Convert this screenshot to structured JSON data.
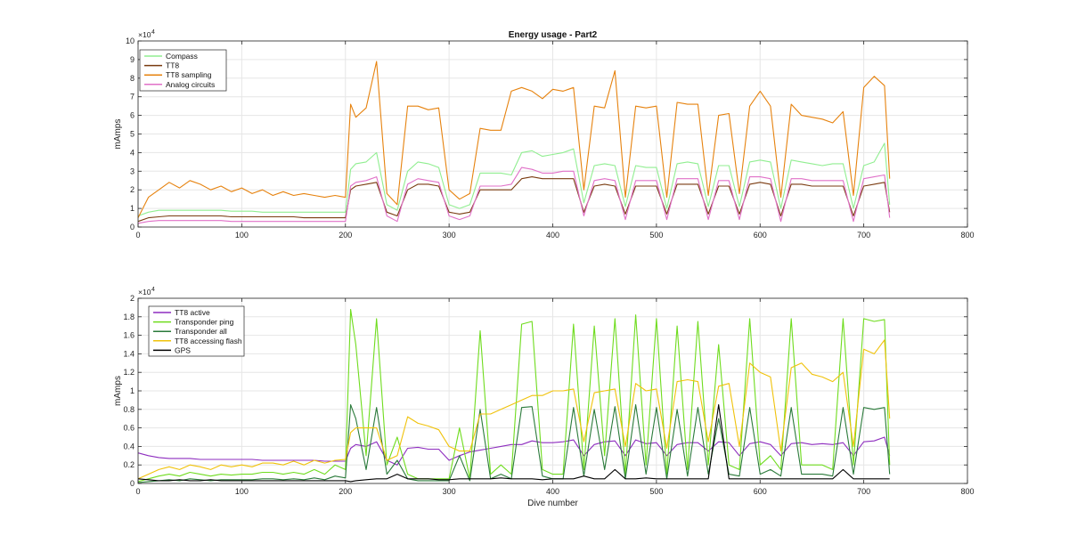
{
  "chart_data": [
    {
      "type": "line",
      "title": "Energy usage - Part2",
      "xlabel": "",
      "ylabel": "mAmps",
      "xlim": [
        0,
        800
      ],
      "ylim": [
        0,
        10
      ],
      "y_exponent_base": "×10",
      "y_exponent": "4",
      "x_ticks": [
        0,
        100,
        200,
        300,
        400,
        500,
        600,
        700,
        800
      ],
      "y_ticks": [
        0,
        1,
        2,
        3,
        4,
        5,
        6,
        7,
        8,
        9,
        10
      ],
      "grid": true,
      "legend_position": "top-left",
      "x": [
        0,
        10,
        20,
        30,
        40,
        50,
        60,
        70,
        80,
        90,
        100,
        110,
        120,
        130,
        140,
        150,
        160,
        170,
        180,
        190,
        200,
        205,
        210,
        220,
        230,
        240,
        250,
        260,
        270,
        280,
        290,
        300,
        310,
        320,
        330,
        340,
        350,
        360,
        370,
        380,
        390,
        400,
        410,
        420,
        430,
        440,
        450,
        460,
        470,
        480,
        490,
        500,
        510,
        520,
        530,
        540,
        550,
        560,
        570,
        580,
        590,
        600,
        610,
        620,
        630,
        640,
        650,
        660,
        670,
        680,
        690,
        700,
        710,
        720,
        725
      ],
      "series": [
        {
          "name": "Compass",
          "color": "#90ee90",
          "values": [
            0.6,
            0.8,
            0.9,
            0.9,
            0.9,
            0.9,
            0.9,
            0.9,
            0.9,
            0.85,
            0.85,
            0.85,
            0.8,
            0.8,
            0.8,
            0.8,
            0.8,
            0.8,
            0.8,
            0.8,
            0.8,
            3.1,
            3.4,
            3.5,
            4.0,
            1.2,
            0.9,
            3.0,
            3.5,
            3.4,
            3.2,
            1.2,
            1.0,
            1.2,
            2.9,
            2.9,
            2.9,
            2.8,
            4.0,
            4.1,
            3.8,
            3.9,
            4.0,
            4.2,
            1.3,
            3.3,
            3.4,
            3.3,
            1.1,
            3.3,
            3.2,
            3.2,
            1.0,
            3.4,
            3.5,
            3.4,
            1.1,
            3.3,
            3.3,
            1.1,
            3.5,
            3.6,
            3.5,
            1.0,
            3.6,
            3.5,
            3.4,
            3.3,
            3.4,
            3.4,
            1.0,
            3.3,
            3.5,
            4.5,
            1.2
          ]
        },
        {
          "name": "TT8",
          "color": "#7a3b10",
          "values": [
            0.3,
            0.5,
            0.55,
            0.6,
            0.6,
            0.6,
            0.6,
            0.6,
            0.6,
            0.55,
            0.55,
            0.55,
            0.55,
            0.55,
            0.55,
            0.55,
            0.5,
            0.5,
            0.5,
            0.5,
            0.5,
            2.0,
            2.2,
            2.3,
            2.4,
            0.8,
            0.6,
            2.0,
            2.3,
            2.3,
            2.2,
            0.8,
            0.7,
            0.8,
            2.0,
            2.0,
            2.0,
            2.0,
            2.6,
            2.7,
            2.6,
            2.6,
            2.6,
            2.6,
            0.8,
            2.2,
            2.3,
            2.2,
            0.7,
            2.2,
            2.2,
            2.2,
            0.7,
            2.3,
            2.3,
            2.3,
            0.7,
            2.2,
            2.2,
            0.7,
            2.3,
            2.4,
            2.3,
            0.6,
            2.3,
            2.3,
            2.2,
            2.2,
            2.2,
            2.2,
            0.6,
            2.2,
            2.3,
            2.4,
            0.8
          ]
        },
        {
          "name": "TT8 sampling",
          "color": "#e6820e",
          "values": [
            0.5,
            1.6,
            2.0,
            2.4,
            2.1,
            2.5,
            2.3,
            2.0,
            2.2,
            1.9,
            2.1,
            1.8,
            2.0,
            1.7,
            1.9,
            1.7,
            1.8,
            1.7,
            1.6,
            1.7,
            1.6,
            6.6,
            5.9,
            6.4,
            8.9,
            1.8,
            1.2,
            6.5,
            6.5,
            6.3,
            6.4,
            2.0,
            1.5,
            1.8,
            5.3,
            5.2,
            5.2,
            7.3,
            7.5,
            7.3,
            6.9,
            7.4,
            7.3,
            7.5,
            2.0,
            6.5,
            6.4,
            8.4,
            1.6,
            6.5,
            6.4,
            6.5,
            1.6,
            6.7,
            6.6,
            6.6,
            1.7,
            6.0,
            6.1,
            1.8,
            6.5,
            7.3,
            6.5,
            1.6,
            6.6,
            6.0,
            5.9,
            5.8,
            5.6,
            6.2,
            1.7,
            7.5,
            8.1,
            7.6,
            2.6
          ]
        },
        {
          "name": "Analog circuits",
          "color": "#e070c8",
          "values": [
            0.2,
            0.3,
            0.35,
            0.35,
            0.35,
            0.35,
            0.35,
            0.35,
            0.35,
            0.3,
            0.3,
            0.3,
            0.3,
            0.3,
            0.3,
            0.3,
            0.3,
            0.3,
            0.3,
            0.3,
            0.3,
            2.2,
            2.4,
            2.5,
            2.7,
            0.6,
            0.3,
            2.3,
            2.6,
            2.5,
            2.4,
            0.6,
            0.4,
            0.6,
            2.2,
            2.2,
            2.2,
            2.3,
            3.2,
            3.1,
            2.9,
            2.9,
            3.0,
            3.0,
            0.6,
            2.5,
            2.6,
            2.5,
            0.4,
            2.5,
            2.5,
            2.5,
            0.4,
            2.6,
            2.6,
            2.6,
            0.4,
            2.5,
            2.5,
            0.4,
            2.7,
            2.7,
            2.6,
            0.3,
            2.6,
            2.6,
            2.5,
            2.5,
            2.5,
            2.5,
            0.3,
            2.6,
            2.7,
            2.8,
            0.5
          ]
        }
      ]
    },
    {
      "type": "line",
      "title": "",
      "xlabel": "Dive number",
      "ylabel": "mAmps",
      "xlim": [
        0,
        800
      ],
      "ylim": [
        0,
        2
      ],
      "y_exponent_base": "×10",
      "y_exponent": "4",
      "x_ticks": [
        0,
        100,
        200,
        300,
        400,
        500,
        600,
        700,
        800
      ],
      "y_ticks": [
        0,
        0.2,
        0.4,
        0.6,
        0.8,
        1,
        1.2,
        1.4,
        1.6,
        1.8,
        2
      ],
      "grid": true,
      "legend_position": "top-left",
      "x": [
        0,
        10,
        20,
        30,
        40,
        50,
        60,
        70,
        80,
        90,
        100,
        110,
        120,
        130,
        140,
        150,
        160,
        170,
        180,
        190,
        200,
        205,
        210,
        220,
        230,
        240,
        250,
        260,
        270,
        280,
        290,
        300,
        310,
        320,
        330,
        340,
        350,
        360,
        370,
        380,
        390,
        400,
        410,
        420,
        430,
        440,
        450,
        460,
        470,
        480,
        490,
        500,
        510,
        520,
        530,
        540,
        550,
        560,
        570,
        580,
        590,
        600,
        610,
        620,
        630,
        640,
        650,
        660,
        670,
        680,
        690,
        700,
        710,
        720,
        725
      ],
      "series": [
        {
          "name": "TT8 active",
          "color": "#8e2dbf",
          "values": [
            0.33,
            0.3,
            0.28,
            0.27,
            0.27,
            0.27,
            0.26,
            0.26,
            0.26,
            0.26,
            0.26,
            0.26,
            0.25,
            0.25,
            0.25,
            0.25,
            0.25,
            0.25,
            0.24,
            0.24,
            0.24,
            0.38,
            0.42,
            0.4,
            0.45,
            0.25,
            0.2,
            0.38,
            0.39,
            0.37,
            0.37,
            0.25,
            0.3,
            0.34,
            0.36,
            0.38,
            0.4,
            0.42,
            0.42,
            0.46,
            0.44,
            0.44,
            0.45,
            0.47,
            0.3,
            0.42,
            0.45,
            0.46,
            0.3,
            0.47,
            0.43,
            0.44,
            0.3,
            0.42,
            0.44,
            0.44,
            0.35,
            0.45,
            0.44,
            0.3,
            0.43,
            0.45,
            0.42,
            0.3,
            0.43,
            0.44,
            0.42,
            0.43,
            0.42,
            0.44,
            0.3,
            0.45,
            0.46,
            0.5,
            0.3
          ]
        },
        {
          "name": "Transponder ping",
          "color": "#6fdc1e",
          "values": [
            0.02,
            0.05,
            0.08,
            0.1,
            0.08,
            0.12,
            0.1,
            0.08,
            0.1,
            0.09,
            0.1,
            0.1,
            0.12,
            0.12,
            0.1,
            0.12,
            0.1,
            0.15,
            0.1,
            0.2,
            0.15,
            1.88,
            1.5,
            0.3,
            1.78,
            0.2,
            0.5,
            0.1,
            0.05,
            0.05,
            0.05,
            0.05,
            0.6,
            0.05,
            1.65,
            0.1,
            0.2,
            0.1,
            1.72,
            1.75,
            0.15,
            0.1,
            0.1,
            1.72,
            0.15,
            1.7,
            0.3,
            1.78,
            0.1,
            1.82,
            0.2,
            1.78,
            0.1,
            1.7,
            0.15,
            1.75,
            0.2,
            1.5,
            0.2,
            0.15,
            1.78,
            0.2,
            0.3,
            0.15,
            1.78,
            0.2,
            0.2,
            0.2,
            0.15,
            1.78,
            0.2,
            1.78,
            1.75,
            1.77,
            0.2
          ]
        },
        {
          "name": "Transponder all",
          "color": "#2a7a3a",
          "values": [
            0.01,
            0.02,
            0.03,
            0.04,
            0.03,
            0.05,
            0.04,
            0.03,
            0.04,
            0.04,
            0.04,
            0.04,
            0.05,
            0.05,
            0.04,
            0.05,
            0.04,
            0.06,
            0.04,
            0.08,
            0.06,
            0.85,
            0.7,
            0.15,
            0.82,
            0.1,
            0.25,
            0.05,
            0.03,
            0.03,
            0.03,
            0.03,
            0.3,
            0.03,
            0.8,
            0.05,
            0.1,
            0.05,
            0.82,
            0.83,
            0.08,
            0.05,
            0.05,
            0.82,
            0.08,
            0.8,
            0.15,
            0.83,
            0.05,
            0.85,
            0.1,
            0.82,
            0.05,
            0.8,
            0.08,
            0.82,
            0.1,
            0.7,
            0.1,
            0.08,
            0.82,
            0.1,
            0.15,
            0.08,
            0.82,
            0.1,
            0.1,
            0.1,
            0.08,
            0.82,
            0.1,
            0.82,
            0.8,
            0.82,
            0.1
          ]
        },
        {
          "name": "TT8 accessing flash",
          "color": "#f0c20a",
          "values": [
            0.05,
            0.1,
            0.15,
            0.18,
            0.15,
            0.2,
            0.18,
            0.15,
            0.2,
            0.18,
            0.2,
            0.18,
            0.22,
            0.22,
            0.2,
            0.24,
            0.2,
            0.25,
            0.22,
            0.25,
            0.26,
            0.55,
            0.6,
            0.6,
            0.6,
            0.25,
            0.3,
            0.72,
            0.65,
            0.62,
            0.58,
            0.4,
            0.35,
            0.35,
            0.75,
            0.75,
            0.8,
            0.85,
            0.9,
            0.95,
            0.95,
            1.0,
            1.0,
            1.02,
            0.45,
            0.98,
            1.0,
            1.02,
            0.4,
            1.08,
            1.0,
            1.02,
            0.38,
            1.1,
            1.12,
            1.1,
            0.45,
            1.05,
            1.08,
            0.4,
            1.3,
            1.2,
            1.15,
            0.35,
            1.25,
            1.3,
            1.18,
            1.15,
            1.1,
            1.2,
            0.4,
            1.45,
            1.4,
            1.55,
            0.7
          ]
        },
        {
          "name": "GPS",
          "color": "#000000",
          "values": [
            0.05,
            0.04,
            0.03,
            0.03,
            0.04,
            0.03,
            0.03,
            0.04,
            0.03,
            0.03,
            0.03,
            0.03,
            0.03,
            0.03,
            0.03,
            0.03,
            0.03,
            0.03,
            0.03,
            0.03,
            0.03,
            0.02,
            0.03,
            0.04,
            0.05,
            0.05,
            0.1,
            0.05,
            0.05,
            0.05,
            0.04,
            0.04,
            0.05,
            0.05,
            0.05,
            0.05,
            0.06,
            0.05,
            0.05,
            0.05,
            0.04,
            0.05,
            0.05,
            0.05,
            0.08,
            0.05,
            0.05,
            0.15,
            0.05,
            0.05,
            0.06,
            0.05,
            0.05,
            0.05,
            0.05,
            0.05,
            0.05,
            0.85,
            0.05,
            0.05,
            0.05,
            0.05,
            0.05,
            0.05,
            0.05,
            0.05,
            0.05,
            0.05,
            0.05,
            0.15,
            0.05,
            0.05,
            0.05,
            0.05,
            0.05
          ]
        }
      ]
    }
  ]
}
